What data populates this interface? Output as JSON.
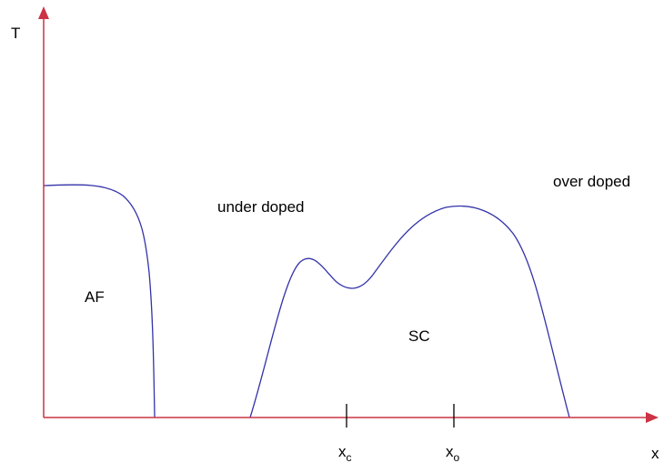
{
  "axes": {
    "y_label": "T",
    "x_label": "x",
    "color": "#cc3344"
  },
  "curve_color": "#3333aa",
  "regions": {
    "af": "AF",
    "sc": "SC",
    "under_doped": "under doped",
    "over_doped": "over doped"
  },
  "ticks": {
    "xc": {
      "base": "x",
      "sub": "c"
    },
    "xo": {
      "base": "x",
      "sub": "o"
    }
  }
}
